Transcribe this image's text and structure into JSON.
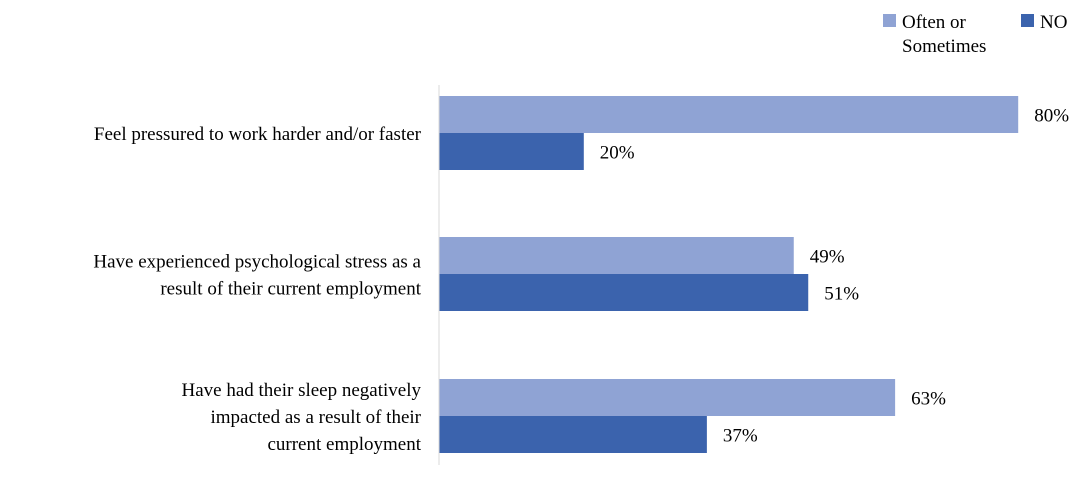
{
  "chart_data": {
    "type": "bar",
    "orientation": "horizontal",
    "categories": [
      "Feel pressured to work harder and/or faster",
      "Have experienced psychological stress as a result of their current employment",
      "Have had their sleep negatively impacted as a result of their current employment"
    ],
    "category_lines": [
      [
        "Feel pressured to work harder and/or faster"
      ],
      [
        "Have experienced psychological stress as a",
        "result of their current employment"
      ],
      [
        "Have had their sleep negatively",
        "impacted as a result of their",
        "current employment"
      ]
    ],
    "series": [
      {
        "name": "Often or Sometimes",
        "legend_lines": [
          "Often or",
          "Sometimes"
        ],
        "color": "#8fa3d4",
        "values": [
          80,
          49,
          63
        ],
        "labels": [
          "80%",
          "49%",
          "63%"
        ]
      },
      {
        "name": "NO",
        "legend_lines": [
          "NO"
        ],
        "color": "#3b63ad",
        "values": [
          20,
          51,
          37
        ],
        "labels": [
          "20%",
          "51%",
          "37%"
        ]
      }
    ],
    "xlim": [
      0,
      100
    ],
    "grid": false,
    "legend_position": "top-right"
  }
}
